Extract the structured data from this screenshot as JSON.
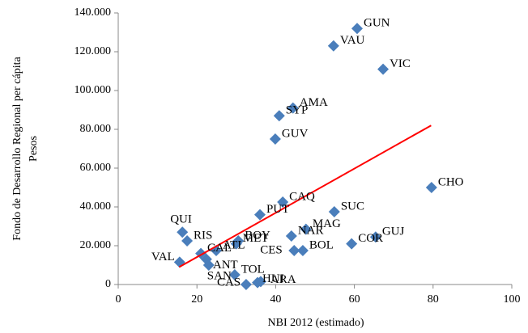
{
  "chart_data": {
    "type": "scatter",
    "x_label": "NBI 2012 (estimado)",
    "y_label": [
      "Fondo de Desarrollo Regional per cápita",
      "Pesos"
    ],
    "color": "#4a7ebb",
    "labels": [
      "GUN",
      "VAU",
      "VIC",
      "CHO",
      "AMA",
      "SYP",
      "GUV",
      "CAQ",
      "PUT",
      "SUC",
      "MAG",
      "NAR",
      "GUJ",
      "COR",
      "BOL",
      "CES",
      "BOY",
      "MET",
      "QUI",
      "RIS",
      "CAL",
      "ATL",
      "VAL",
      "ANT",
      "SAN",
      "TOL",
      "CAS",
      "HUI",
      "ARA"
    ],
    "x": [
      60.7,
      54.7,
      67.3,
      79.6,
      44.4,
      40.9,
      39.9,
      41.8,
      36,
      54.9,
      47.7,
      44,
      65.4,
      59.3,
      46.9,
      44.7,
      30.5,
      30,
      16.3,
      17.5,
      21,
      24.9,
      15.6,
      22.4,
      23,
      29.6,
      32.5,
      35.4,
      36.2
    ],
    "values": [
      132000,
      123000,
      111000,
      50000,
      91000,
      87000,
      75000,
      42500,
      36000,
      37500,
      28500,
      25000,
      24500,
      21000,
      17500,
      17500,
      22500,
      21000,
      27000,
      22500,
      16000,
      17500,
      11500,
      13000,
      10000,
      5000,
      0,
      1000,
      1500
    ],
    "trendline": {
      "color": "#ff0000",
      "x": [
        15.5,
        79.5
      ],
      "values": [
        9000,
        82000
      ]
    },
    "xlim": [
      0,
      100
    ],
    "xticks": [
      0,
      20,
      40,
      60,
      80,
      100
    ],
    "ylim": [
      0,
      140000
    ],
    "yticks": [
      0,
      {
        "value": 20000,
        "label": "20.000"
      },
      {
        "value": 40000,
        "label": "40.000"
      },
      {
        "value": 60000,
        "label": "60.000"
      },
      {
        "value": 80000,
        "label": "80.000"
      },
      {
        "value": 100000,
        "label": "100.000"
      },
      {
        "value": 120000,
        "label": "120.000"
      },
      {
        "value": 140000,
        "label": "140.000"
      }
    ]
  }
}
